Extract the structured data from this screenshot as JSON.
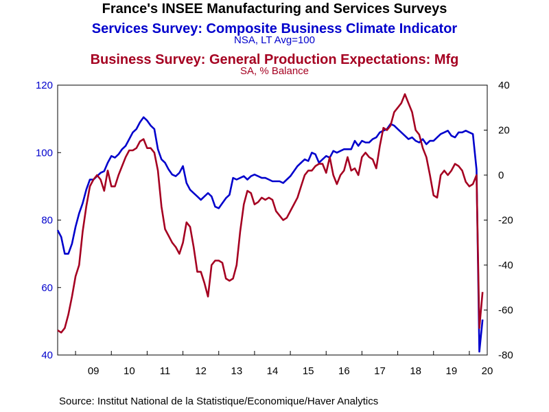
{
  "titles": {
    "main": "France's INSEE Manufacturing and Services Surveys",
    "series1": "Services Survey: Composite Business Climate Indicator",
    "series1_unit": "NSA, LT Avg=100",
    "series2": "Business Survey: General Production Expectations: Mfg",
    "series2_unit": "SA, % Balance"
  },
  "source": "Source:  Institut National de la Statistique/Economique/Haver Analytics",
  "colors": {
    "series1": "#0000cc",
    "series2": "#a50021",
    "frame": "#000000",
    "background": "#ffffff"
  },
  "chart_data": {
    "type": "line",
    "x_range": [
      2008.5,
      2020.5
    ],
    "x_tick_labels": [
      "09",
      "10",
      "11",
      "12",
      "13",
      "14",
      "15",
      "16",
      "17",
      "18",
      "19",
      "20"
    ],
    "left_axis": {
      "range": [
        40,
        120
      ],
      "ticks": [
        40,
        60,
        80,
        100,
        120
      ],
      "color": "#0000cc"
    },
    "right_axis": {
      "range": [
        -80,
        40
      ],
      "ticks": [
        -80,
        -60,
        -40,
        -20,
        0,
        20,
        40
      ],
      "color": "#a50021"
    },
    "grid": false,
    "series": [
      {
        "name": "Services Survey: Composite Business Climate Indicator",
        "axis": "left",
        "points": [
          [
            2008.5,
            77
          ],
          [
            2008.6,
            75
          ],
          [
            2008.7,
            70
          ],
          [
            2008.8,
            70
          ],
          [
            2008.9,
            73
          ],
          [
            2009.0,
            78
          ],
          [
            2009.1,
            82
          ],
          [
            2009.2,
            85
          ],
          [
            2009.3,
            89
          ],
          [
            2009.4,
            92
          ],
          [
            2009.5,
            92
          ],
          [
            2009.6,
            93
          ],
          [
            2009.7,
            94
          ],
          [
            2009.8,
            94.5
          ],
          [
            2009.9,
            97
          ],
          [
            2010.0,
            99
          ],
          [
            2010.1,
            98.5
          ],
          [
            2010.2,
            99.5
          ],
          [
            2010.3,
            101
          ],
          [
            2010.4,
            102
          ],
          [
            2010.5,
            104
          ],
          [
            2010.6,
            106
          ],
          [
            2010.7,
            107
          ],
          [
            2010.8,
            109
          ],
          [
            2010.9,
            110.5
          ],
          [
            2011.0,
            109.5
          ],
          [
            2011.1,
            108
          ],
          [
            2011.2,
            107
          ],
          [
            2011.3,
            101
          ],
          [
            2011.4,
            98
          ],
          [
            2011.5,
            97
          ],
          [
            2011.6,
            95
          ],
          [
            2011.7,
            93.5
          ],
          [
            2011.8,
            93
          ],
          [
            2011.9,
            94
          ],
          [
            2012.0,
            96
          ],
          [
            2012.1,
            91
          ],
          [
            2012.2,
            89
          ],
          [
            2012.3,
            88
          ],
          [
            2012.4,
            87
          ],
          [
            2012.5,
            86
          ],
          [
            2012.6,
            87
          ],
          [
            2012.7,
            88
          ],
          [
            2012.8,
            87
          ],
          [
            2012.9,
            84
          ],
          [
            2013.0,
            83.5
          ],
          [
            2013.1,
            85
          ],
          [
            2013.2,
            86.5
          ],
          [
            2013.3,
            87.5
          ],
          [
            2013.4,
            92.5
          ],
          [
            2013.5,
            92
          ],
          [
            2013.6,
            92.5
          ],
          [
            2013.7,
            93
          ],
          [
            2013.8,
            92
          ],
          [
            2013.9,
            93
          ],
          [
            2014.0,
            93.5
          ],
          [
            2014.1,
            93
          ],
          [
            2014.2,
            92.5
          ],
          [
            2014.3,
            92.5
          ],
          [
            2014.4,
            92
          ],
          [
            2014.5,
            91.5
          ],
          [
            2014.6,
            91.5
          ],
          [
            2014.7,
            91.5
          ],
          [
            2014.8,
            91
          ],
          [
            2014.9,
            92
          ],
          [
            2015.0,
            93
          ],
          [
            2015.1,
            94.5
          ],
          [
            2015.2,
            96
          ],
          [
            2015.3,
            97
          ],
          [
            2015.4,
            98
          ],
          [
            2015.5,
            97.5
          ],
          [
            2015.6,
            100
          ],
          [
            2015.7,
            99.5
          ],
          [
            2015.8,
            97
          ],
          [
            2015.9,
            98
          ],
          [
            2016.0,
            99
          ],
          [
            2016.1,
            98.5
          ],
          [
            2016.2,
            100.5
          ],
          [
            2016.3,
            100
          ],
          [
            2016.4,
            100.5
          ],
          [
            2016.5,
            101
          ],
          [
            2016.6,
            101
          ],
          [
            2016.7,
            101
          ],
          [
            2016.8,
            103.5
          ],
          [
            2016.9,
            102
          ],
          [
            2017.0,
            103.5
          ],
          [
            2017.1,
            103
          ],
          [
            2017.2,
            103
          ],
          [
            2017.3,
            104
          ],
          [
            2017.4,
            104.5
          ],
          [
            2017.5,
            106
          ],
          [
            2017.6,
            106.5
          ],
          [
            2017.7,
            107
          ],
          [
            2017.8,
            108.5
          ],
          [
            2017.9,
            108
          ],
          [
            2018.0,
            107
          ],
          [
            2018.1,
            106
          ],
          [
            2018.2,
            105
          ],
          [
            2018.3,
            104
          ],
          [
            2018.4,
            104.5
          ],
          [
            2018.5,
            103.5
          ],
          [
            2018.6,
            103
          ],
          [
            2018.7,
            104
          ],
          [
            2018.8,
            102.5
          ],
          [
            2018.9,
            103.5
          ],
          [
            2019.0,
            103.5
          ],
          [
            2019.1,
            104.5
          ],
          [
            2019.2,
            105.5
          ],
          [
            2019.3,
            106
          ],
          [
            2019.4,
            106.5
          ],
          [
            2019.5,
            105
          ],
          [
            2019.6,
            104.5
          ],
          [
            2019.7,
            106
          ],
          [
            2019.8,
            106
          ],
          [
            2019.9,
            106.5
          ],
          [
            2020.0,
            106
          ],
          [
            2020.1,
            105.5
          ],
          [
            2020.2,
            95
          ],
          [
            2020.28,
            41
          ],
          [
            2020.37,
            50.5
          ]
        ]
      },
      {
        "name": "Business Survey: General Production Expectations: Mfg",
        "axis": "right",
        "points": [
          [
            2008.5,
            -69
          ],
          [
            2008.6,
            -70
          ],
          [
            2008.7,
            -68
          ],
          [
            2008.8,
            -62
          ],
          [
            2008.9,
            -54
          ],
          [
            2009.0,
            -45
          ],
          [
            2009.1,
            -40
          ],
          [
            2009.2,
            -25
          ],
          [
            2009.3,
            -14
          ],
          [
            2009.4,
            -5
          ],
          [
            2009.5,
            -2
          ],
          [
            2009.6,
            0
          ],
          [
            2009.7,
            -2
          ],
          [
            2009.8,
            -7
          ],
          [
            2009.9,
            2
          ],
          [
            2010.0,
            -5
          ],
          [
            2010.1,
            -5
          ],
          [
            2010.2,
            0
          ],
          [
            2010.3,
            4
          ],
          [
            2010.4,
            8
          ],
          [
            2010.5,
            11
          ],
          [
            2010.6,
            11
          ],
          [
            2010.7,
            12
          ],
          [
            2010.8,
            15
          ],
          [
            2010.9,
            16
          ],
          [
            2011.0,
            12
          ],
          [
            2011.1,
            12
          ],
          [
            2011.2,
            10
          ],
          [
            2011.3,
            2
          ],
          [
            2011.4,
            -14
          ],
          [
            2011.5,
            -24
          ],
          [
            2011.6,
            -27
          ],
          [
            2011.7,
            -30
          ],
          [
            2011.8,
            -32
          ],
          [
            2011.9,
            -35
          ],
          [
            2012.0,
            -30
          ],
          [
            2012.1,
            -21
          ],
          [
            2012.2,
            -23
          ],
          [
            2012.3,
            -32
          ],
          [
            2012.4,
            -43
          ],
          [
            2012.5,
            -43
          ],
          [
            2012.6,
            -48
          ],
          [
            2012.7,
            -54
          ],
          [
            2012.8,
            -40
          ],
          [
            2012.9,
            -38
          ],
          [
            2013.0,
            -38
          ],
          [
            2013.1,
            -39
          ],
          [
            2013.2,
            -46
          ],
          [
            2013.3,
            -47
          ],
          [
            2013.4,
            -46
          ],
          [
            2013.5,
            -40
          ],
          [
            2013.6,
            -25
          ],
          [
            2013.7,
            -13
          ],
          [
            2013.8,
            -7
          ],
          [
            2013.9,
            -8
          ],
          [
            2014.0,
            -13
          ],
          [
            2014.1,
            -12
          ],
          [
            2014.2,
            -10
          ],
          [
            2014.3,
            -11
          ],
          [
            2014.4,
            -10
          ],
          [
            2014.5,
            -11
          ],
          [
            2014.6,
            -16
          ],
          [
            2014.7,
            -18
          ],
          [
            2014.8,
            -20
          ],
          [
            2014.9,
            -19
          ],
          [
            2015.0,
            -16
          ],
          [
            2015.1,
            -13
          ],
          [
            2015.2,
            -10
          ],
          [
            2015.3,
            -5
          ],
          [
            2015.4,
            0
          ],
          [
            2015.5,
            2
          ],
          [
            2015.6,
            2
          ],
          [
            2015.7,
            4
          ],
          [
            2015.8,
            5
          ],
          [
            2015.9,
            5
          ],
          [
            2016.0,
            1
          ],
          [
            2016.1,
            8
          ],
          [
            2016.2,
            0
          ],
          [
            2016.3,
            -4
          ],
          [
            2016.4,
            0
          ],
          [
            2016.5,
            2
          ],
          [
            2016.6,
            8
          ],
          [
            2016.7,
            2
          ],
          [
            2016.8,
            3
          ],
          [
            2016.9,
            0
          ],
          [
            2017.0,
            8
          ],
          [
            2017.1,
            10
          ],
          [
            2017.2,
            8
          ],
          [
            2017.3,
            7
          ],
          [
            2017.4,
            3
          ],
          [
            2017.5,
            13
          ],
          [
            2017.6,
            21
          ],
          [
            2017.7,
            20
          ],
          [
            2017.8,
            22
          ],
          [
            2017.9,
            28
          ],
          [
            2018.0,
            30
          ],
          [
            2018.1,
            32
          ],
          [
            2018.2,
            36
          ],
          [
            2018.3,
            32
          ],
          [
            2018.4,
            28
          ],
          [
            2018.5,
            20
          ],
          [
            2018.6,
            18
          ],
          [
            2018.7,
            12
          ],
          [
            2018.8,
            8
          ],
          [
            2018.9,
            0
          ],
          [
            2019.0,
            -9
          ],
          [
            2019.1,
            -10
          ],
          [
            2019.2,
            0
          ],
          [
            2019.3,
            2
          ],
          [
            2019.4,
            0
          ],
          [
            2019.5,
            2
          ],
          [
            2019.6,
            5
          ],
          [
            2019.7,
            4
          ],
          [
            2019.8,
            2
          ],
          [
            2019.9,
            -3
          ],
          [
            2020.0,
            -5
          ],
          [
            2020.1,
            -4
          ],
          [
            2020.2,
            0
          ],
          [
            2020.28,
            -68
          ],
          [
            2020.37,
            -52
          ]
        ]
      }
    ]
  }
}
